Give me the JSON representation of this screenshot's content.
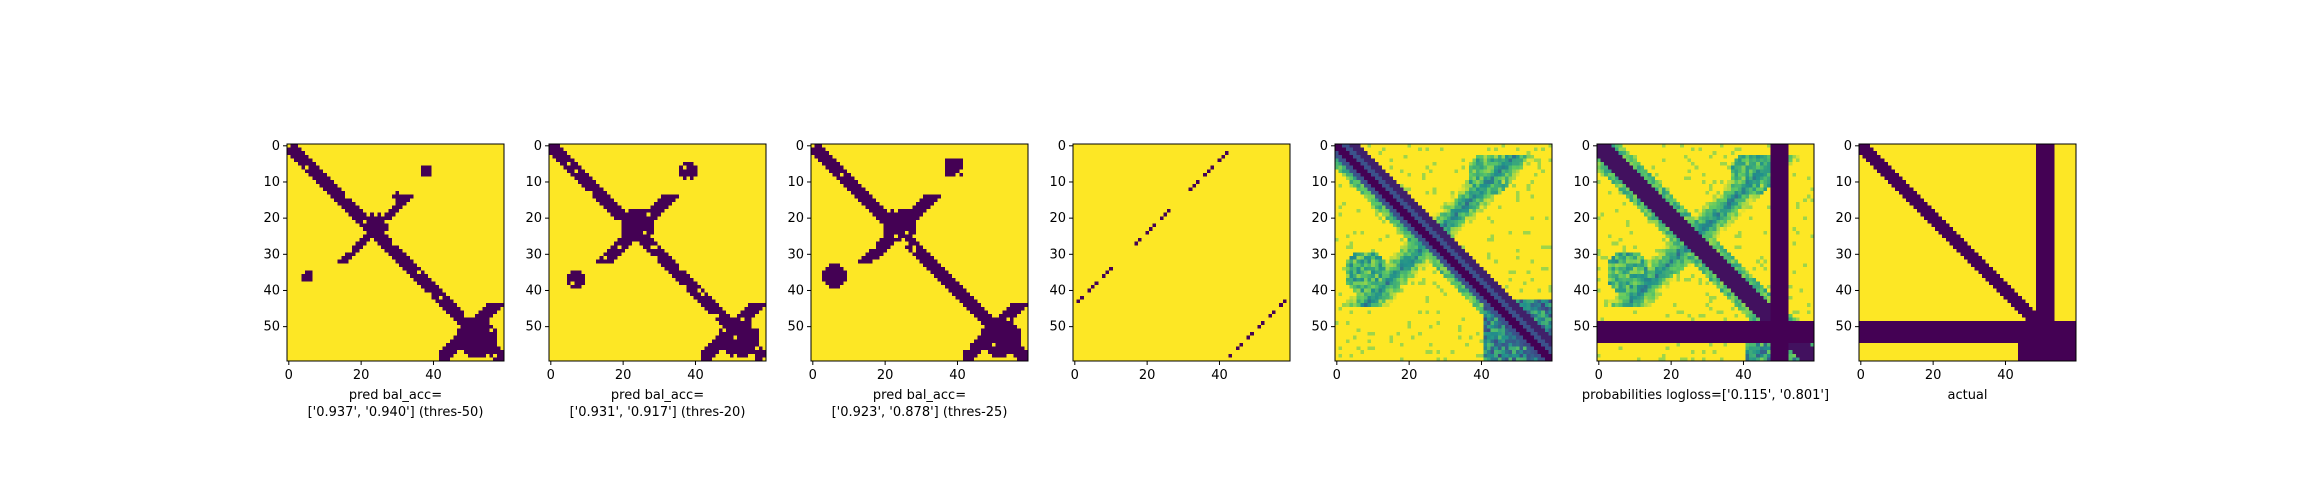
{
  "chart_data": [
    {
      "type": "heatmap",
      "title": "",
      "xlabel_lines": [
        "pred bal_acc=",
        "['0.937', '0.940'] (thres-50)"
      ],
      "ylabel": "",
      "grid_size": 60,
      "x_ticks": [
        "0",
        "20",
        "40"
      ],
      "y_ticks": [
        "0",
        "10",
        "20",
        "30",
        "40",
        "50"
      ],
      "colormap": "binary",
      "description_values": "binary prediction matrix (threshold 50)"
    },
    {
      "type": "heatmap",
      "title": "",
      "xlabel_lines": [
        "pred bal_acc=",
        "['0.931', '0.917'] (thres-20)"
      ],
      "ylabel": "",
      "grid_size": 60,
      "x_ticks": [
        "0",
        "20",
        "40"
      ],
      "y_ticks": [
        "0",
        "10",
        "20",
        "30",
        "40",
        "50"
      ],
      "colormap": "binary"
    },
    {
      "type": "heatmap",
      "title": "",
      "xlabel_lines": [
        "pred bal_acc=",
        "['0.923', '0.878'] (thres-25)"
      ],
      "ylabel": "",
      "grid_size": 60,
      "x_ticks": [
        "0",
        "20",
        "40"
      ],
      "y_ticks": [
        "0",
        "10",
        "20",
        "30",
        "40",
        "50"
      ],
      "colormap": "binary"
    },
    {
      "type": "heatmap",
      "title": "",
      "xlabel_lines": [],
      "ylabel": "",
      "grid_size": 60,
      "x_ticks": [
        "0",
        "20",
        "40"
      ],
      "y_ticks": [
        "0",
        "10",
        "20",
        "30",
        "40",
        "50"
      ],
      "colormap": "binary"
    },
    {
      "type": "heatmap",
      "title": "",
      "xlabel_lines": [],
      "ylabel": "",
      "grid_size": 60,
      "x_ticks": [
        "0",
        "20",
        "40"
      ],
      "y_ticks": [
        "0",
        "10",
        "20",
        "30",
        "40",
        "50"
      ],
      "colormap": "viridis"
    },
    {
      "type": "heatmap",
      "title": "",
      "xlabel_lines": [
        "probabilities logloss=['0.115', '0.801']"
      ],
      "ylabel": "",
      "grid_size": 60,
      "x_ticks": [
        "0",
        "20",
        "40"
      ],
      "y_ticks": [
        "0",
        "10",
        "20",
        "30",
        "40",
        "50"
      ],
      "colormap": "viridis"
    },
    {
      "type": "heatmap",
      "title": "",
      "xlabel_lines": [
        "actual"
      ],
      "ylabel": "",
      "grid_size": 60,
      "x_ticks": [
        "0",
        "20",
        "40"
      ],
      "y_ticks": [
        "0",
        "10",
        "20",
        "30",
        "40",
        "50"
      ],
      "colormap": "binary"
    }
  ],
  "colors": {
    "low": "#440154",
    "high": "#fde725",
    "viridis": [
      "#440154",
      "#3b528b",
      "#21918c",
      "#5ec962",
      "#fde725"
    ]
  }
}
